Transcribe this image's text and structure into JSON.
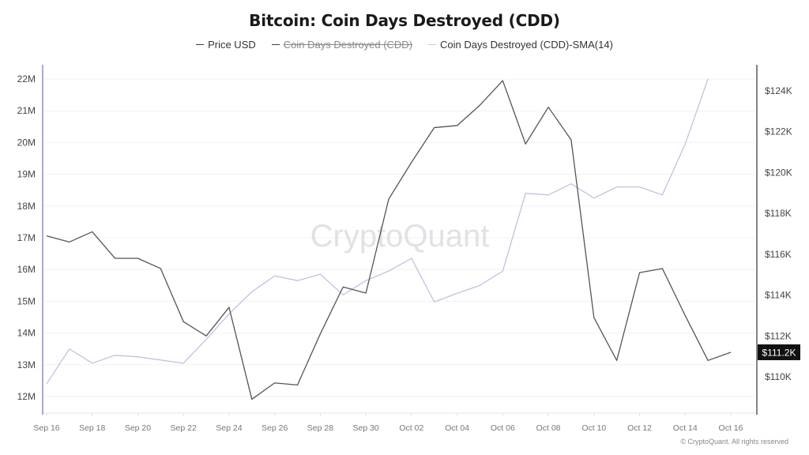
{
  "title": "Bitcoin: Coin Days Destroyed (CDD)",
  "legend": [
    {
      "label": "Price USD",
      "color": "#3d3d3d",
      "hidden": false
    },
    {
      "label": "Coin Days Destroyed (CDD)",
      "color": "#3d3d3d",
      "hidden": true
    },
    {
      "label": "Coin Days Destroyed (CDD)-SMA(14)",
      "color": "#b9b8e0",
      "hidden": false
    }
  ],
  "watermark": "CryptoQuant",
  "footer": "© CryptoQuant. All rights reserved",
  "price_marker": "$111.2K",
  "chart_data": {
    "type": "line",
    "title": "Bitcoin: Coin Days Destroyed (CDD)",
    "xlabel": "",
    "ylabel_left": "Coin Days Destroyed",
    "ylabel_right": "Price USD",
    "x_ticks": [
      "Sep 16",
      "Sep 18",
      "Sep 20",
      "Sep 22",
      "Sep 24",
      "Sep 26",
      "Sep 28",
      "Sep 30",
      "Oct 02",
      "Oct 04",
      "Oct 06",
      "Oct 08",
      "Oct 10",
      "Oct 12",
      "Oct 14",
      "Oct 16"
    ],
    "y_left_ticks": [
      "22M",
      "21M",
      "20M",
      "19M",
      "18M",
      "17M",
      "16M",
      "15M",
      "14M",
      "13M",
      "12M"
    ],
    "y_right_ticks": [
      "$124K",
      "$122K",
      "$120K",
      "$118K",
      "$116K",
      "$114K",
      "$112K",
      "$110K"
    ],
    "ylim_left": [
      11.75,
      22.25
    ],
    "ylim_right": [
      108.5,
      125.5
    ],
    "grid": true,
    "legend_position": "top",
    "x": [
      "Sep 16",
      "Sep 17",
      "Sep 18",
      "Sep 19",
      "Sep 20",
      "Sep 21",
      "Sep 22",
      "Sep 23",
      "Sep 24",
      "Sep 25",
      "Sep 26",
      "Sep 27",
      "Sep 28",
      "Sep 29",
      "Sep 30",
      "Oct 01",
      "Oct 02",
      "Oct 03",
      "Oct 04",
      "Oct 05",
      "Oct 06",
      "Oct 07",
      "Oct 08",
      "Oct 09",
      "Oct 10",
      "Oct 11",
      "Oct 12",
      "Oct 13",
      "Oct 14",
      "Oct 15",
      "Oct 16"
    ],
    "series": [
      {
        "name": "Price USD",
        "axis": "right",
        "unit": "$K",
        "values": [
          116.9,
          116.6,
          117.1,
          115.8,
          115.8,
          115.3,
          112.7,
          112.0,
          113.4,
          108.9,
          109.7,
          109.6,
          112.1,
          114.4,
          114.1,
          118.7,
          120.5,
          122.2,
          122.3,
          123.3,
          124.5,
          121.4,
          123.2,
          121.6,
          112.9,
          110.8,
          115.1,
          115.3,
          113.0,
          110.8,
          111.2
        ]
      },
      {
        "name": "Coin Days Destroyed (CDD)-SMA(14)",
        "axis": "left",
        "unit": "M",
        "values": [
          12.4,
          13.5,
          13.05,
          13.3,
          13.25,
          13.15,
          13.05,
          13.8,
          14.6,
          15.3,
          15.8,
          15.65,
          15.85,
          15.2,
          15.65,
          15.95,
          16.35,
          14.98,
          15.25,
          15.5,
          15.95,
          18.4,
          18.35,
          18.7,
          18.25,
          18.6,
          18.6,
          18.35,
          19.95,
          22.0,
          null
        ]
      },
      {
        "name": "Coin Days Destroyed (CDD)",
        "axis": "left",
        "unit": "M",
        "hidden": true,
        "values": []
      }
    ]
  }
}
